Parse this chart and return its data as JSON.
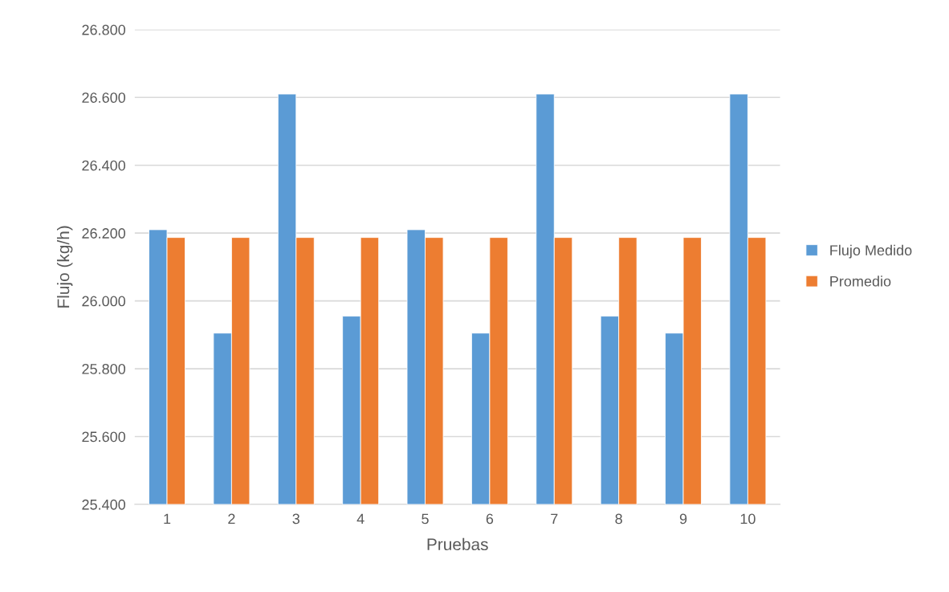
{
  "chart_data": {
    "type": "bar",
    "xlabel": "Pruebas",
    "ylabel": "Flujo (kg/h)",
    "categories": [
      "1",
      "2",
      "3",
      "4",
      "5",
      "6",
      "7",
      "8",
      "9",
      "10"
    ],
    "series": [
      {
        "name": "Flujo Medido",
        "color": "#5b9bd5",
        "values": [
          26.21,
          25.905,
          26.61,
          25.955,
          26.21,
          25.905,
          26.61,
          25.955,
          25.905,
          26.61
        ]
      },
      {
        "name": "Promedio",
        "color": "#ed7d31",
        "values": [
          26.187,
          26.187,
          26.187,
          26.187,
          26.187,
          26.187,
          26.187,
          26.187,
          26.187,
          26.187
        ]
      }
    ],
    "ylim": [
      25.4,
      26.8
    ],
    "yticks": [
      {
        "value": 25.4,
        "label": "25.400"
      },
      {
        "value": 25.6,
        "label": "25.600"
      },
      {
        "value": 25.8,
        "label": "25.800"
      },
      {
        "value": 26.0,
        "label": "26.000"
      },
      {
        "value": 26.2,
        "label": "26.200"
      },
      {
        "value": 26.4,
        "label": "26.400"
      },
      {
        "value": 26.6,
        "label": "26.600"
      },
      {
        "value": 26.8,
        "label": "26.800"
      }
    ],
    "grid": "y",
    "legend": "right"
  }
}
